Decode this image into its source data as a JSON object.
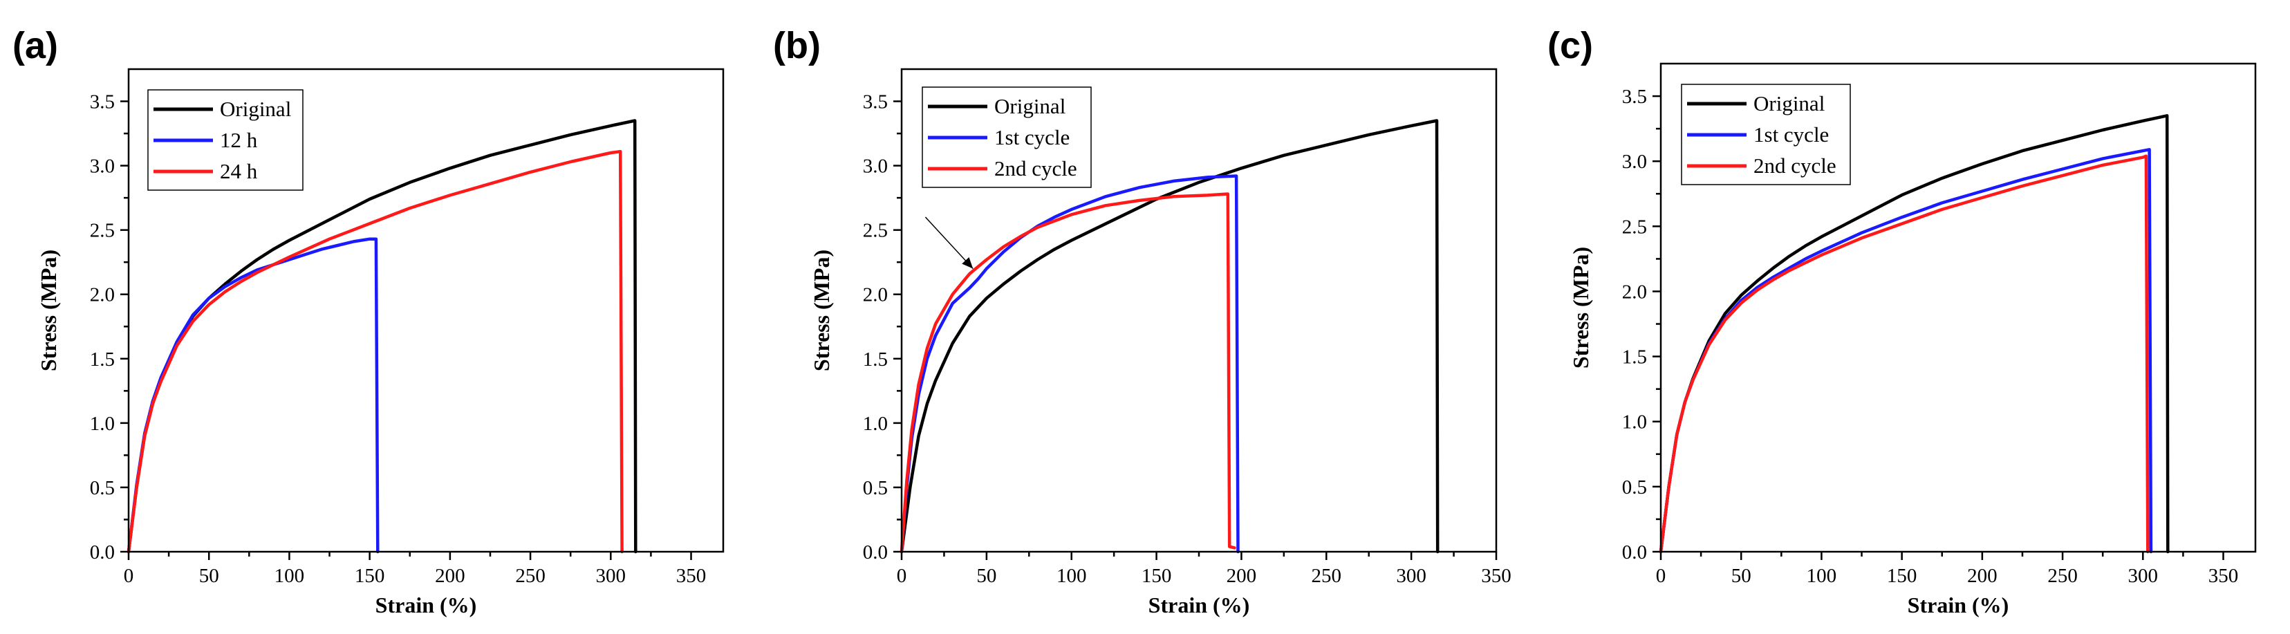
{
  "colors": {
    "black": "#000000",
    "blue": "#1a1aff",
    "red": "#ff1a1a"
  },
  "chart_data": [
    {
      "type": "line",
      "panel_label": "(a)",
      "xlabel": "Strain (%)",
      "ylabel": "Stress (MPa)",
      "xlim": [
        0,
        370
      ],
      "ylim": [
        0,
        3.75
      ],
      "xticks": [
        0,
        50,
        100,
        150,
        200,
        250,
        300,
        350
      ],
      "yticks": [
        0.0,
        0.5,
        1.0,
        1.5,
        2.0,
        2.5,
        3.0,
        3.5
      ],
      "grid": false,
      "legend_position": "top-left",
      "series": [
        {
          "name": "Original",
          "color": "#000000",
          "x": [
            0,
            5,
            10,
            15,
            20,
            30,
            40,
            50,
            60,
            70,
            80,
            90,
            100,
            125,
            150,
            175,
            200,
            225,
            250,
            275,
            300,
            315,
            315.5
          ],
          "y": [
            0,
            0.5,
            0.9,
            1.15,
            1.33,
            1.62,
            1.83,
            1.97,
            2.08,
            2.18,
            2.27,
            2.35,
            2.42,
            2.58,
            2.74,
            2.87,
            2.98,
            3.08,
            3.16,
            3.24,
            3.31,
            3.35,
            0
          ]
        },
        {
          "name": "12 h",
          "color": "#1a1aff",
          "x": [
            0,
            5,
            10,
            15,
            20,
            30,
            40,
            50,
            60,
            70,
            80,
            90,
            100,
            110,
            120,
            130,
            140,
            150,
            154,
            155
          ],
          "y": [
            0,
            0.52,
            0.92,
            1.17,
            1.35,
            1.63,
            1.84,
            1.97,
            2.06,
            2.13,
            2.19,
            2.23,
            2.27,
            2.31,
            2.35,
            2.38,
            2.41,
            2.43,
            2.43,
            0
          ]
        },
        {
          "name": "24 h",
          "color": "#ff1a1a",
          "x": [
            0,
            5,
            10,
            15,
            20,
            30,
            40,
            50,
            60,
            70,
            80,
            90,
            100,
            125,
            150,
            175,
            200,
            225,
            250,
            275,
            300,
            306,
            307
          ],
          "y": [
            0,
            0.5,
            0.9,
            1.15,
            1.32,
            1.6,
            1.79,
            1.92,
            2.02,
            2.1,
            2.17,
            2.23,
            2.29,
            2.43,
            2.55,
            2.67,
            2.77,
            2.86,
            2.95,
            3.03,
            3.1,
            3.11,
            0
          ]
        }
      ]
    },
    {
      "type": "line",
      "panel_label": "(b)",
      "xlabel": "Strain (%)",
      "ylabel": "Stress (MPa)",
      "xlim": [
        0,
        350
      ],
      "ylim": [
        0,
        3.75
      ],
      "xticks": [
        0,
        50,
        100,
        150,
        200,
        250,
        300,
        350
      ],
      "yticks": [
        0.0,
        0.5,
        1.0,
        1.5,
        2.0,
        2.5,
        3.0,
        3.5
      ],
      "grid": false,
      "legend_position": "top-left",
      "annotation": {
        "type": "arrow",
        "from": [
          14,
          2.6
        ],
        "to": [
          42,
          2.2
        ]
      },
      "series": [
        {
          "name": "Original",
          "color": "#000000",
          "x": [
            0,
            5,
            10,
            15,
            20,
            30,
            40,
            50,
            60,
            70,
            80,
            90,
            100,
            125,
            150,
            175,
            200,
            225,
            250,
            275,
            300,
            315,
            315.5
          ],
          "y": [
            0,
            0.5,
            0.9,
            1.15,
            1.33,
            1.62,
            1.83,
            1.97,
            2.08,
            2.18,
            2.27,
            2.35,
            2.42,
            2.58,
            2.74,
            2.87,
            2.98,
            3.08,
            3.16,
            3.24,
            3.31,
            3.35,
            0
          ]
        },
        {
          "name": "1st cycle",
          "color": "#1a1aff",
          "x": [
            0,
            3,
            6,
            10,
            15,
            20,
            30,
            40,
            45,
            50,
            60,
            70,
            80,
            90,
            100,
            120,
            140,
            160,
            180,
            197,
            198
          ],
          "y": [
            0,
            0.5,
            0.88,
            1.22,
            1.5,
            1.68,
            1.93,
            2.05,
            2.12,
            2.2,
            2.33,
            2.44,
            2.53,
            2.6,
            2.66,
            2.76,
            2.83,
            2.88,
            2.91,
            2.92,
            0
          ]
        },
        {
          "name": "2nd cycle",
          "color": "#ff1a1a",
          "x": [
            0,
            3,
            6,
            10,
            15,
            20,
            30,
            40,
            50,
            60,
            70,
            80,
            90,
            100,
            120,
            140,
            160,
            180,
            192,
            193,
            196
          ],
          "y": [
            0,
            0.55,
            0.95,
            1.3,
            1.58,
            1.77,
            2.0,
            2.16,
            2.27,
            2.37,
            2.45,
            2.52,
            2.57,
            2.62,
            2.69,
            2.73,
            2.76,
            2.77,
            2.78,
            0.04,
            0.03
          ]
        }
      ]
    },
    {
      "type": "line",
      "panel_label": "(c)",
      "xlabel": "Strain (%)",
      "ylabel": "Stress (MPa)",
      "xlim": [
        0,
        370
      ],
      "ylim": [
        0,
        3.75
      ],
      "xticks": [
        0,
        50,
        100,
        150,
        200,
        250,
        300,
        350
      ],
      "yticks": [
        0.0,
        0.5,
        1.0,
        1.5,
        2.0,
        2.5,
        3.0,
        3.5
      ],
      "grid": false,
      "legend_position": "top-left",
      "series": [
        {
          "name": "Original",
          "color": "#000000",
          "x": [
            0,
            5,
            10,
            15,
            20,
            30,
            40,
            50,
            60,
            70,
            80,
            90,
            100,
            125,
            150,
            175,
            200,
            225,
            250,
            275,
            300,
            315,
            315.5
          ],
          "y": [
            0,
            0.5,
            0.9,
            1.15,
            1.33,
            1.62,
            1.83,
            1.97,
            2.08,
            2.18,
            2.27,
            2.35,
            2.42,
            2.58,
            2.74,
            2.87,
            2.98,
            3.08,
            3.16,
            3.24,
            3.31,
            3.35,
            0
          ]
        },
        {
          "name": "1st cycle",
          "color": "#1a1aff",
          "x": [
            0,
            5,
            10,
            15,
            20,
            30,
            40,
            50,
            60,
            70,
            80,
            90,
            100,
            125,
            150,
            175,
            200,
            225,
            250,
            275,
            300,
            304,
            305
          ],
          "y": [
            0,
            0.5,
            0.9,
            1.15,
            1.32,
            1.6,
            1.79,
            1.93,
            2.03,
            2.11,
            2.18,
            2.25,
            2.31,
            2.45,
            2.57,
            2.68,
            2.77,
            2.86,
            2.94,
            3.02,
            3.08,
            3.09,
            0
          ]
        },
        {
          "name": "2nd cycle",
          "color": "#ff1a1a",
          "x": [
            0,
            5,
            10,
            15,
            20,
            30,
            40,
            50,
            60,
            70,
            80,
            90,
            100,
            125,
            150,
            175,
            200,
            225,
            250,
            275,
            300,
            302,
            303
          ],
          "y": [
            0,
            0.5,
            0.9,
            1.15,
            1.32,
            1.59,
            1.78,
            1.91,
            2.01,
            2.09,
            2.16,
            2.22,
            2.28,
            2.41,
            2.52,
            2.63,
            2.72,
            2.81,
            2.89,
            2.97,
            3.03,
            3.04,
            0
          ]
        }
      ]
    }
  ]
}
